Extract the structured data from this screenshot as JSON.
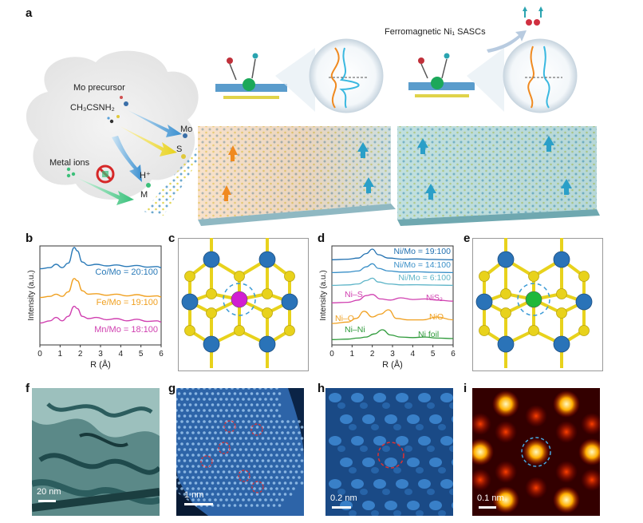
{
  "panels": {
    "a": {
      "label": "a",
      "mo_precursor": "Mo precursor",
      "ch3csnh2": "CH₃CSNH₂",
      "metal_ions": "Metal ions",
      "mo": "Mo",
      "s": "S",
      "h_plus": "H⁺",
      "m": "M",
      "ferromagnetic": "Ferromagnetic Ni₁ SASCs"
    },
    "b": {
      "label": "b",
      "ylabel": "Intensity (a.u.)",
      "xlabel": "R (Å)",
      "ticks": [
        "0",
        "1",
        "2",
        "3",
        "4",
        "5",
        "6"
      ]
    },
    "c": {
      "label": "c"
    },
    "d": {
      "label": "d",
      "ylabel": "Intensity (a.u.)",
      "xlabel": "R (Å)",
      "ticks": [
        "0",
        "1",
        "2",
        "3",
        "4",
        "5",
        "6"
      ],
      "annotations": {
        "ni_s": "Ni–S",
        "nis2": "NiS₂",
        "ni_o": "Ni–O",
        "nio": "NiO",
        "ni_ni": "Ni–Ni",
        "ni_foil": "Ni foil"
      }
    },
    "e": {
      "label": "e"
    },
    "f": {
      "label": "f",
      "scale": "20 nm"
    },
    "g": {
      "label": "g",
      "scale": "1 nm"
    },
    "h": {
      "label": "h",
      "scale": "0.2 nm"
    },
    "i": {
      "label": "i",
      "scale": "0.1 nm"
    }
  },
  "chart_data": [
    {
      "panel": "b",
      "type": "line",
      "xlabel": "R (Å)",
      "ylabel": "Intensity (a.u.)",
      "xlim": [
        0,
        6
      ],
      "series": [
        {
          "name": "Co/Mo = 20:100",
          "color": "#2a7ab8",
          "x": [
            0,
            0.5,
            0.8,
            1.1,
            1.4,
            1.7,
            1.85,
            2.1,
            2.4,
            2.8,
            3.3,
            3.8,
            4.3,
            4.8,
            5.3,
            5.8,
            6
          ],
          "y": [
            0.05,
            0.1,
            0.25,
            0.1,
            0.3,
            1.0,
            0.85,
            0.35,
            0.2,
            0.25,
            0.18,
            0.22,
            0.15,
            0.2,
            0.12,
            0.15,
            0.1
          ]
        },
        {
          "name": "Fe/Mo = 19:100",
          "color": "#f0a020",
          "x": [
            0,
            0.5,
            0.8,
            1.1,
            1.4,
            1.7,
            1.85,
            2.1,
            2.4,
            2.8,
            3.3,
            3.8,
            4.3,
            4.8,
            5.3,
            5.8,
            6
          ],
          "y": [
            0.05,
            0.1,
            0.2,
            0.1,
            0.3,
            0.9,
            0.8,
            0.35,
            0.2,
            0.22,
            0.15,
            0.2,
            0.12,
            0.18,
            0.1,
            0.12,
            0.08
          ]
        },
        {
          "name": "Mn/Mo = 18:100",
          "color": "#d040b0",
          "x": [
            0,
            0.5,
            0.8,
            1.1,
            1.4,
            1.7,
            1.85,
            2.1,
            2.4,
            2.8,
            3.3,
            3.8,
            4.3,
            4.8,
            5.3,
            5.8,
            6
          ],
          "y": [
            0.05,
            0.15,
            0.3,
            0.15,
            0.35,
            0.8,
            0.7,
            0.35,
            0.25,
            0.3,
            0.2,
            0.25,
            0.15,
            0.22,
            0.12,
            0.15,
            0.1
          ]
        }
      ]
    },
    {
      "panel": "d",
      "type": "line",
      "xlabel": "R (Å)",
      "ylabel": "Intensity (a.u.)",
      "xlim": [
        0,
        6
      ],
      "series": [
        {
          "name": "Ni/Mo = 19:100",
          "color": "#1f6fb0",
          "x": [
            0,
            0.8,
            1.3,
            1.7,
            2.0,
            2.3,
            2.8,
            3.5,
            4.2,
            5.0,
            6
          ],
          "y": [
            0.05,
            0.1,
            0.2,
            0.6,
            1.0,
            0.5,
            0.2,
            0.1,
            0.12,
            0.08,
            0.05
          ]
        },
        {
          "name": "Ni/Mo = 14:100",
          "color": "#3a90c8",
          "x": [
            0,
            0.8,
            1.3,
            1.7,
            2.0,
            2.3,
            2.8,
            3.5,
            4.2,
            5.0,
            6
          ],
          "y": [
            0.05,
            0.1,
            0.2,
            0.6,
            0.9,
            0.45,
            0.2,
            0.1,
            0.12,
            0.08,
            0.05
          ]
        },
        {
          "name": "Ni/Mo = 6:100",
          "color": "#5fb5c8",
          "x": [
            0,
            0.8,
            1.3,
            1.7,
            2.0,
            2.3,
            2.8,
            3.5,
            4.2,
            5.0,
            6
          ],
          "y": [
            0.05,
            0.1,
            0.2,
            0.55,
            0.8,
            0.4,
            0.2,
            0.1,
            0.12,
            0.08,
            0.05
          ]
        },
        {
          "name": "NiS₂",
          "color": "#d040b0",
          "x": [
            0,
            0.8,
            1.3,
            1.7,
            2.0,
            2.4,
            2.9,
            3.4,
            4.0,
            4.6,
            5.2,
            6
          ],
          "y": [
            0.05,
            0.1,
            0.3,
            0.7,
            0.8,
            0.4,
            0.3,
            0.5,
            0.35,
            0.4,
            0.3,
            0.2
          ]
        },
        {
          "name": "NiO",
          "color": "#f0a020",
          "x": [
            0,
            0.8,
            1.2,
            1.6,
            2.0,
            2.4,
            2.8,
            3.2,
            3.8,
            4.5,
            5.2,
            6
          ],
          "y": [
            0.05,
            0.15,
            0.4,
            0.9,
            0.5,
            0.7,
            1.0,
            0.4,
            0.3,
            0.3,
            0.5,
            0.3
          ]
        },
        {
          "name": "Ni foil",
          "color": "#2e9a3a",
          "x": [
            0,
            0.8,
            1.3,
            1.7,
            2.1,
            2.5,
            2.9,
            3.4,
            4.0,
            4.6,
            5.2,
            6
          ],
          "y": [
            0.05,
            0.1,
            0.2,
            0.3,
            0.6,
            1.0,
            0.5,
            0.3,
            0.25,
            0.3,
            0.2,
            0.15
          ]
        }
      ]
    }
  ]
}
